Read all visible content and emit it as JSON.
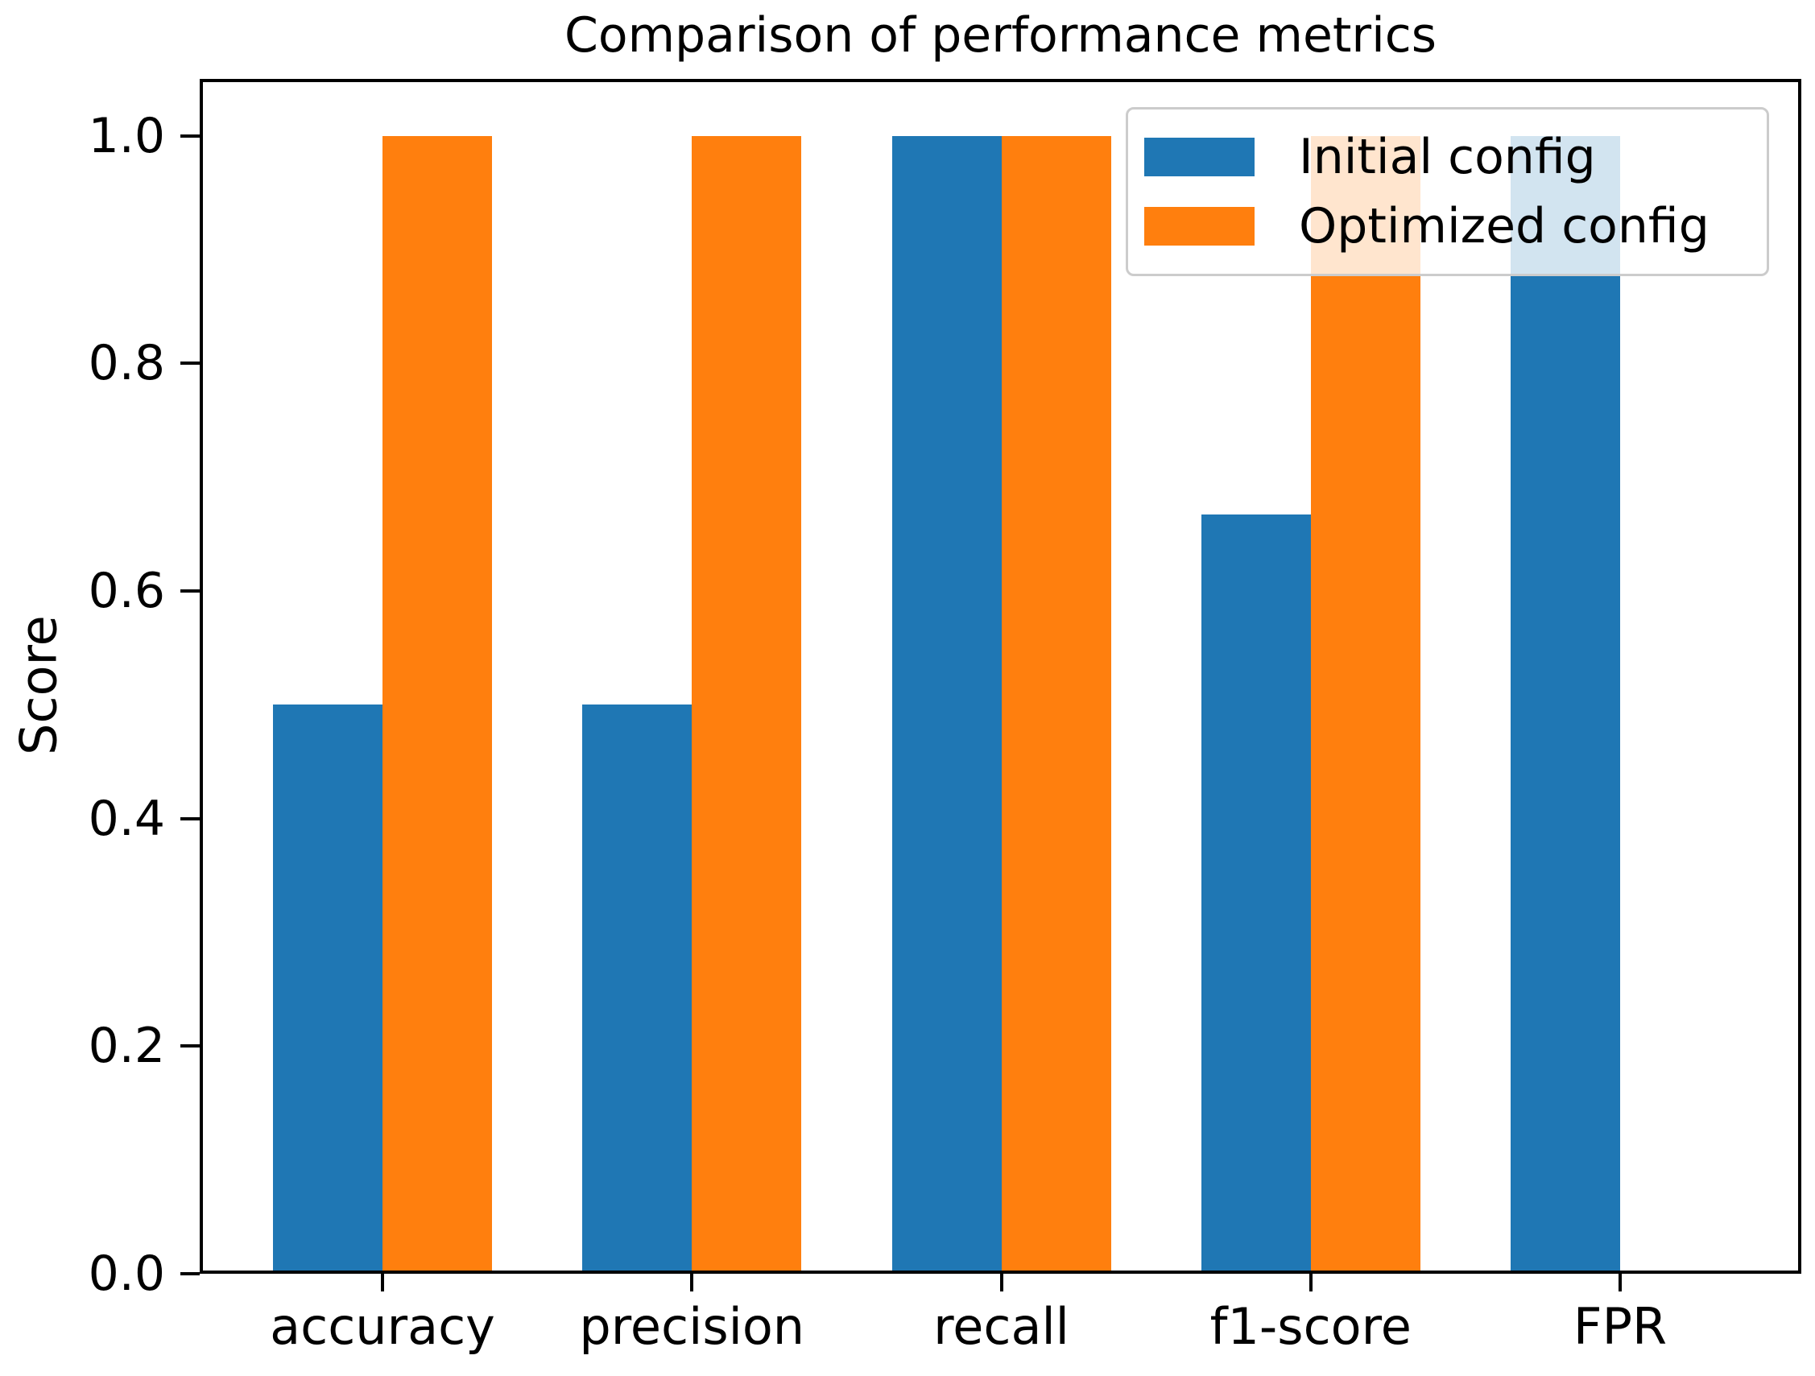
{
  "chart_data": {
    "type": "bar",
    "title": "Comparison of performance metrics",
    "xlabel": "",
    "ylabel": "Score",
    "categories": [
      "accuracy",
      "precision",
      "recall",
      "f1-score",
      "FPR"
    ],
    "series": [
      {
        "name": "Initial config",
        "color": "#1f77b4",
        "values": [
          0.5,
          0.5,
          1.0,
          0.667,
          1.0
        ]
      },
      {
        "name": "Optimized config",
        "color": "#ff7f0e",
        "values": [
          1.0,
          1.0,
          1.0,
          1.0,
          0.0
        ]
      }
    ],
    "ylim": [
      0,
      1.05
    ],
    "yticks": [
      "0.0",
      "0.2",
      "0.4",
      "0.6",
      "0.8",
      "1.0"
    ],
    "grid": false,
    "legend": {
      "position": "upper right",
      "items": [
        "Initial config",
        "Optimized config"
      ]
    }
  }
}
